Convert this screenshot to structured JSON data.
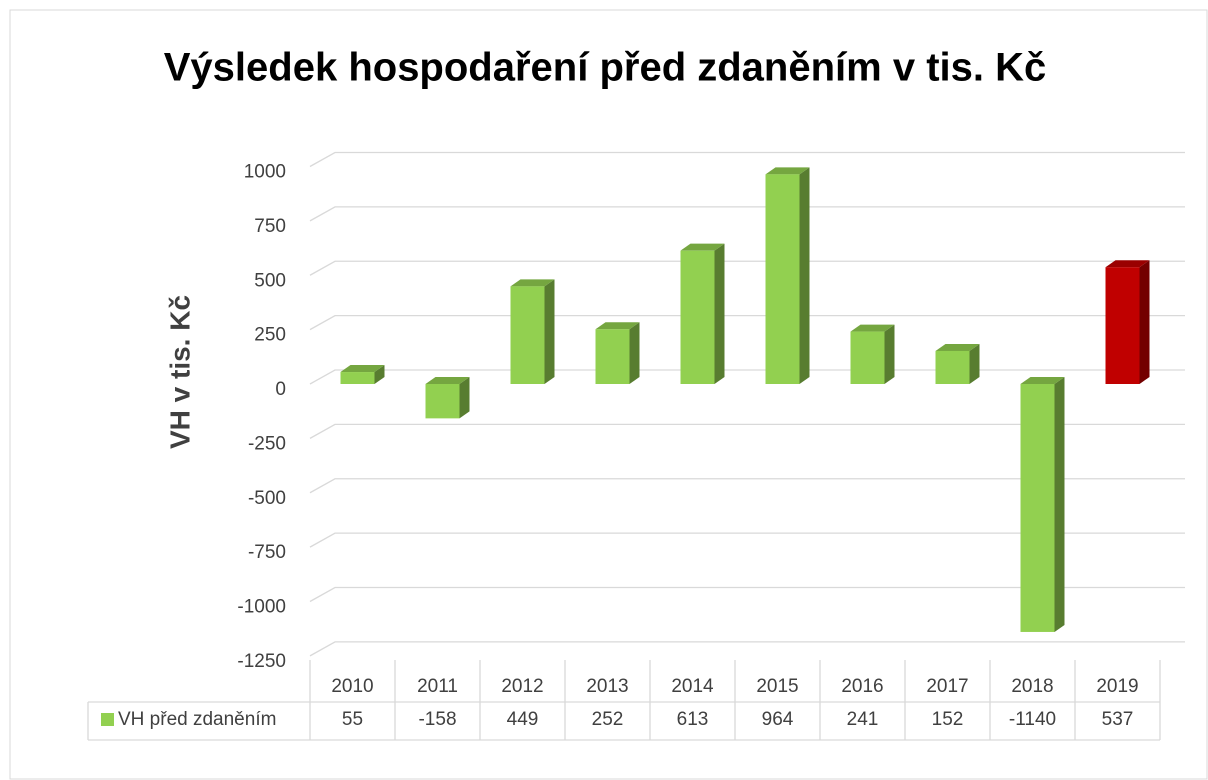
{
  "chart_data": {
    "type": "bar3d",
    "title": "Výsledek hospodaření před zdaněním v tis. Kč",
    "y_label": "VH v tis. Kč",
    "categories": [
      "2010",
      "2011",
      "2012",
      "2013",
      "2014",
      "2015",
      "2016",
      "2017",
      "2018",
      "2019"
    ],
    "series": [
      {
        "name": "VH před zdaněním",
        "color": "#92d050",
        "values": [
          55,
          -158,
          449,
          252,
          613,
          964,
          241,
          152,
          -1140,
          537
        ],
        "colors": [
          "#92d050",
          "#92d050",
          "#92d050",
          "#92d050",
          "#92d050",
          "#92d050",
          "#92d050",
          "#92d050",
          "#92d050",
          "#c00000"
        ]
      }
    ],
    "ylim": [
      -1250,
      1000
    ],
    "yticks": [
      -1250,
      -1000,
      -750,
      -500,
      -250,
      0,
      250,
      500,
      750,
      1000
    ],
    "grid": true,
    "data_table": true
  }
}
